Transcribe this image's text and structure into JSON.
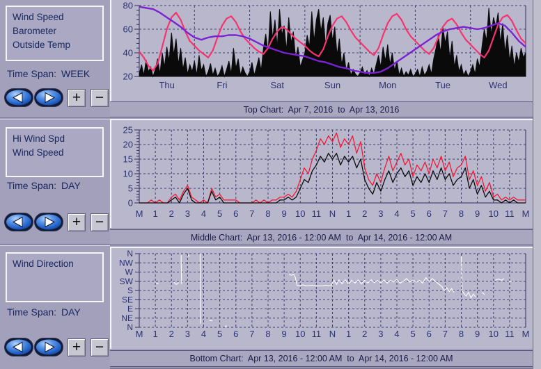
{
  "titles": {
    "top": "Top Chart:  Apr 7, 2016  to  Apr 13, 2016",
    "middle": "Middle Chart:  Apr 13, 2016 - 12:00 AM  to  Apr 14, 2016 - 12:00 AM",
    "bottom": "Bottom Chart:  Apr 13, 2016 - 12:00 AM  to  Apr 14, 2016 - 12:00 AM"
  },
  "sidebar": {
    "sections": [
      {
        "legend_items": [
          "Wind Speed",
          "Barometer",
          "Outside Temp"
        ],
        "time_span_label": "Time Span:",
        "time_span_value": "WEEK"
      },
      {
        "legend_items": [
          "Hi Wind Spd",
          "Wind Speed"
        ],
        "time_span_label": "Time Span:",
        "time_span_value": "DAY"
      },
      {
        "legend_items": [
          "Wind Direction"
        ],
        "time_span_label": "Time Span:",
        "time_span_value": "DAY"
      }
    ],
    "nav": {
      "back_icon": "left-arrow",
      "forward_icon": "right-arrow",
      "zoom_in": "+",
      "zoom_out": "−"
    }
  },
  "colors": {
    "sidebar_bg": "#a2a0bb",
    "panel_bg": "#b9b7cc",
    "titlebar_bg": "#a9a7c0",
    "grid": "#3d3d6e",
    "axis": "#2e2e5c",
    "text_navy": "#16265f",
    "temp_pink": "#f5336f",
    "barometer_purple": "#7b22d3",
    "wind_black": "#0a0a0a",
    "hi_wind_red": "#f51835",
    "direction_white": "#ffffff",
    "button_blue": "#2f6fd6"
  },
  "chart_data": [
    {
      "id": "top",
      "type": "line",
      "title": "Top Chart: Apr 7, 2016 to Apr 13, 2016",
      "x_max": 168,
      "x_divisions": 7,
      "x_label_mode": "center",
      "x_labels": [
        "Thu",
        "Fri",
        "Sat",
        "Sun",
        "Mon",
        "Tue",
        "Wed"
      ],
      "ylim": [
        20,
        80
      ],
      "yticks": [
        20,
        40,
        60,
        80
      ],
      "y_minor": 4,
      "grid_values": [
        40,
        60,
        80
      ],
      "series": [
        {
          "name": "Wind Speed",
          "color": "#0a0a0a",
          "render": "area",
          "baseline": 20,
          "step": 1,
          "values": [
            22,
            30,
            21,
            34,
            24,
            28,
            20,
            26,
            35,
            22,
            40,
            28,
            45,
            33,
            57,
            38,
            52,
            30,
            44,
            26,
            36,
            22,
            30,
            24,
            33,
            21,
            38,
            25,
            30,
            20,
            24,
            31,
            21,
            27,
            20,
            23,
            29,
            20,
            26,
            33,
            22,
            44,
            27,
            35,
            21,
            28,
            23,
            20,
            24,
            32,
            21,
            28,
            36,
            25,
            44,
            56,
            40,
            75,
            52,
            68,
            45,
            77,
            55,
            63,
            42,
            70,
            48,
            58,
            35,
            45,
            28,
            34,
            40,
            55,
            45,
            75,
            50,
            68,
            77,
            58,
            70,
            46,
            65,
            72,
            50,
            62,
            38,
            52,
            30,
            40,
            24,
            32,
            21,
            26,
            22,
            20,
            23,
            28,
            21,
            25,
            20,
            27,
            22,
            30,
            38,
            28,
            45,
            33,
            47,
            30,
            40,
            25,
            33,
            21,
            27,
            20,
            24,
            21,
            26,
            20,
            22,
            26,
            20,
            28,
            21,
            24,
            30,
            22,
            35,
            44,
            55,
            40,
            62,
            48,
            58,
            35,
            50,
            28,
            38,
            24,
            30,
            21,
            25,
            20,
            24,
            30,
            22,
            35,
            28,
            45,
            60,
            50,
            78,
            55,
            70,
            62,
            74,
            48,
            65,
            40,
            55,
            33,
            46,
            28,
            40,
            32,
            44,
            36,
            40
          ]
        },
        {
          "name": "Outside Temp",
          "color": "#f5336f",
          "render": "line",
          "width": 2.2,
          "step": 2,
          "values": [
            41,
            36,
            29,
            25,
            31,
            45,
            60,
            70,
            74,
            68,
            58,
            50,
            46,
            42,
            39,
            36,
            42,
            53,
            63,
            69,
            71,
            66,
            58,
            52,
            48,
            44,
            41,
            39,
            44,
            52,
            58,
            62,
            60,
            56,
            52,
            49,
            46,
            42,
            39,
            37,
            43,
            54,
            63,
            69,
            71,
            66,
            59,
            53,
            49,
            45,
            41,
            38,
            44,
            55,
            65,
            71,
            73,
            68,
            60,
            54,
            50,
            46,
            42,
            39,
            44,
            53,
            62,
            67,
            69,
            64,
            57,
            51,
            47,
            43,
            39,
            36,
            42,
            53,
            64,
            70,
            72,
            67,
            59,
            52,
            48
          ]
        },
        {
          "name": "Barometer",
          "color": "#7b22d3",
          "render": "line",
          "width": 2.4,
          "step": 3,
          "values": [
            79,
            78,
            77,
            74,
            70,
            66,
            62,
            57,
            53,
            51,
            53,
            54,
            54,
            55,
            55,
            54,
            52,
            49,
            46,
            44,
            42,
            40,
            39,
            38,
            37,
            35,
            33,
            32,
            30,
            28,
            27,
            25,
            24,
            23,
            23,
            24,
            27,
            31,
            35,
            39,
            43,
            47,
            51,
            55,
            58,
            60,
            61,
            62,
            61,
            60,
            61,
            63,
            65,
            63,
            57,
            50,
            45
          ]
        }
      ]
    },
    {
      "id": "middle",
      "type": "line",
      "title": "Middle Chart: Apr 13, 2016 - 12:00 AM to Apr 14, 2016 - 12:00 AM",
      "x_max": 24,
      "x_divisions": 24,
      "x_label_mode": "boundary",
      "x_labels": [
        "M",
        "1",
        "2",
        "3",
        "4",
        "5",
        "6",
        "7",
        "8",
        "9",
        "10",
        "11",
        "N",
        "1",
        "2",
        "3",
        "4",
        "5",
        "6",
        "7",
        "8",
        "9",
        "10",
        "11",
        "M"
      ],
      "ylim": [
        0,
        25
      ],
      "yticks": [
        0,
        5,
        10,
        15,
        20,
        25
      ],
      "y_minor": 1,
      "grid_values": [
        5,
        10,
        15,
        20,
        25
      ],
      "series": [
        {
          "name": "Hi Wind Spd",
          "color": "#f51835",
          "render": "line",
          "width": 1.3,
          "step": 0.25,
          "values": [
            0,
            0,
            0,
            1,
            0,
            1,
            0,
            0,
            2,
            3,
            1,
            4,
            6,
            2,
            1,
            0,
            1,
            0,
            5,
            2,
            3,
            1,
            1,
            1,
            1,
            0,
            0,
            0,
            0,
            1,
            0,
            1,
            0,
            1,
            1,
            2,
            2,
            3,
            2,
            4,
            8,
            12,
            10,
            15,
            18,
            22,
            20,
            23,
            21,
            24,
            19,
            22,
            20,
            23,
            17,
            21,
            12,
            8,
            6,
            10,
            7,
            12,
            16,
            11,
            14,
            17,
            13,
            15,
            9,
            13,
            11,
            14,
            10,
            15,
            12,
            16,
            11,
            14,
            9,
            12,
            13,
            16,
            8,
            11,
            6,
            9,
            4,
            7,
            2,
            3,
            1,
            2,
            1,
            2,
            1,
            1,
            1
          ]
        },
        {
          "name": "Wind Speed",
          "color": "#0a0a0a",
          "render": "line",
          "width": 1.3,
          "step": 0.25,
          "values": [
            0,
            0,
            0,
            0,
            0,
            0,
            0,
            0,
            1,
            2,
            0,
            3,
            5,
            1,
            0,
            0,
            0,
            0,
            4,
            1,
            2,
            0,
            0,
            0,
            0,
            0,
            0,
            0,
            0,
            0,
            0,
            0,
            0,
            0,
            0,
            1,
            1,
            2,
            1,
            2,
            5,
            8,
            7,
            11,
            13,
            16,
            14,
            17,
            15,
            17,
            13,
            16,
            14,
            16,
            12,
            15,
            8,
            5,
            3,
            7,
            4,
            8,
            11,
            7,
            10,
            12,
            9,
            11,
            6,
            9,
            7,
            10,
            7,
            11,
            8,
            12,
            8,
            10,
            6,
            8,
            9,
            12,
            5,
            8,
            3,
            6,
            2,
            4,
            1,
            1,
            0,
            1,
            0,
            1,
            0,
            0,
            0
          ]
        }
      ]
    },
    {
      "id": "bottom",
      "type": "category-line",
      "title": "Bottom Chart: Apr 13, 2016 - 12:00 AM to Apr 14, 2016 - 12:00 AM",
      "x_max": 24,
      "x_divisions": 24,
      "x_label_mode": "boundary",
      "x_labels": [
        "M",
        "1",
        "2",
        "3",
        "4",
        "5",
        "6",
        "7",
        "8",
        "9",
        "10",
        "11",
        "N",
        "1",
        "2",
        "3",
        "4",
        "5",
        "6",
        "7",
        "8",
        "9",
        "10",
        "11",
        "M"
      ],
      "y_categories": [
        "N",
        "NW",
        "W",
        "SW",
        "S",
        "SE",
        "E",
        "NE",
        "N"
      ],
      "series": [
        {
          "name": "Wind Direction",
          "color": "#ffffff",
          "render": "gapline",
          "width": 1.1,
          "points": [
            [
              1.05,
              3.2
            ],
            [
              1.2,
              3.25
            ],
            null,
            [
              2.15,
              3.1
            ],
            [
              2.3,
              3.35
            ],
            [
              2.45,
              3.15
            ],
            null,
            [
              2.6,
              0.15
            ],
            [
              2.63,
              3.3
            ],
            null,
            [
              3.05,
              0.1
            ],
            [
              3.1,
              0.35
            ],
            null,
            [
              3.78,
              0.0
            ],
            [
              3.81,
              7.6
            ],
            null,
            [
              4.35,
              7.25
            ],
            [
              4.55,
              7.3
            ],
            null,
            [
              5.3,
              7.9
            ],
            [
              5.45,
              7.85
            ],
            null,
            [
              9.3,
              2.2
            ],
            [
              9.45,
              2.35
            ],
            [
              9.6,
              2.25
            ],
            [
              9.7,
              2.6
            ],
            [
              9.8,
              3.45
            ],
            [
              9.95,
              3.5
            ],
            [
              10.15,
              3.4
            ],
            [
              10.4,
              3.5
            ],
            [
              10.7,
              3.45
            ],
            [
              11.0,
              3.5
            ],
            [
              11.3,
              3.5
            ],
            [
              11.6,
              3.45
            ],
            [
              11.9,
              3.5
            ],
            [
              12.1,
              2.9
            ],
            [
              12.25,
              3.35
            ],
            [
              12.4,
              2.85
            ],
            [
              12.6,
              3.25
            ],
            [
              12.8,
              2.85
            ],
            [
              13.0,
              3.3
            ],
            [
              13.2,
              2.9
            ],
            [
              13.4,
              3.2
            ],
            [
              13.6,
              2.85
            ],
            [
              13.8,
              3.3
            ],
            [
              14.0,
              2.9
            ],
            [
              14.2,
              3.2
            ],
            [
              14.4,
              2.85
            ],
            [
              14.6,
              3.15
            ],
            [
              14.8,
              2.9
            ],
            [
              15.0,
              3.2
            ],
            [
              15.2,
              2.85
            ],
            [
              15.4,
              3.2
            ],
            [
              15.6,
              2.9
            ],
            [
              15.8,
              3.1
            ],
            [
              16.0,
              2.8
            ],
            [
              16.2,
              3.2
            ],
            [
              16.4,
              3.0
            ],
            [
              16.6,
              2.7
            ],
            [
              16.8,
              3.1
            ],
            [
              17.0,
              2.85
            ],
            [
              17.2,
              3.1
            ],
            [
              17.4,
              2.9
            ],
            [
              17.6,
              3.2
            ],
            [
              17.8,
              2.6
            ],
            [
              18.0,
              3.0
            ],
            [
              18.2,
              2.7
            ],
            [
              18.4,
              3.0
            ],
            [
              18.6,
              3.3
            ],
            [
              18.8,
              3.6
            ],
            [
              18.95,
              4.0
            ],
            [
              19.1,
              3.7
            ],
            [
              19.25,
              4.1
            ],
            [
              19.4,
              3.8
            ],
            [
              19.55,
              4.2
            ],
            null,
            [
              20.0,
              0.3
            ],
            [
              20.05,
              4.0
            ],
            [
              20.15,
              4.3
            ],
            [
              20.3,
              4.6
            ],
            [
              20.45,
              4.2
            ],
            [
              20.6,
              4.8
            ],
            [
              20.75,
              4.4
            ],
            [
              20.9,
              4.7
            ],
            null,
            [
              21.3,
              4.2
            ],
            [
              21.45,
              4.45
            ],
            null,
            [
              22.1,
              2.9
            ],
            [
              22.3,
              2.75
            ],
            [
              22.5,
              2.9
            ],
            [
              22.65,
              2.7
            ],
            null,
            [
              22.95,
              3.0
            ],
            [
              23.15,
              3.0
            ]
          ]
        }
      ]
    }
  ]
}
